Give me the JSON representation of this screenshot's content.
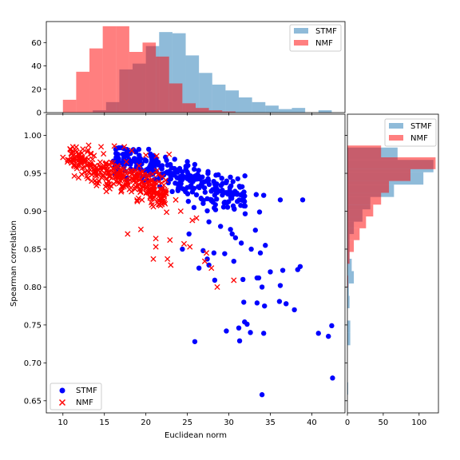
{
  "chart_data": {
    "type": "scatter",
    "main": {
      "xlabel": "Euclidean norm",
      "ylabel": "Spearman correlation",
      "xlim": [
        8,
        44
      ],
      "ylim": [
        0.634,
        1.028
      ],
      "xticks": [
        10,
        15,
        20,
        25,
        30,
        35,
        40
      ],
      "yticks": [
        0.65,
        0.7,
        0.75,
        0.8,
        0.85,
        0.9,
        0.95,
        1.0
      ],
      "xtick_labels": [
        "10",
        "15",
        "20",
        "25",
        "30",
        "35",
        "40"
      ],
      "ytick_labels": [
        "0.65",
        "0.70",
        "0.75",
        "0.80",
        "0.85",
        "0.90",
        "0.95",
        "1.00"
      ],
      "legend": "lower-left",
      "series": [
        {
          "name": "STMF",
          "marker": "circle",
          "color": "#0000ff",
          "core": {
            "n": 300,
            "x_range": [
              16,
              32
            ],
            "y_center_fn": "0.975 - 0.0038*(x-16)",
            "y_spread": 0.03
          },
          "points": [
            [
              36.2,
              0.915
            ],
            [
              38.9,
              0.915
            ],
            [
              34.2,
              0.921
            ],
            [
              33.3,
              0.922
            ],
            [
              31.9,
              0.92
            ],
            [
              33.7,
              0.899
            ],
            [
              33.2,
              0.875
            ],
            [
              34.4,
              0.855
            ],
            [
              33.8,
              0.845
            ],
            [
              32.7,
              0.85
            ],
            [
              30.4,
              0.87
            ],
            [
              30.8,
              0.865
            ],
            [
              31.5,
              0.858
            ],
            [
              30.6,
              0.834
            ],
            [
              29.5,
              0.844
            ],
            [
              28.2,
              0.845
            ],
            [
              26.9,
              0.848
            ],
            [
              27.4,
              0.837
            ],
            [
              27.6,
              0.829
            ],
            [
              26.4,
              0.825
            ],
            [
              28.3,
              0.809
            ],
            [
              31.7,
              0.81
            ],
            [
              33.4,
              0.812
            ],
            [
              33.6,
              0.812
            ],
            [
              34.0,
              0.8
            ],
            [
              36.2,
              0.802
            ],
            [
              35.0,
              0.82
            ],
            [
              36.5,
              0.822
            ],
            [
              38.6,
              0.827
            ],
            [
              38.3,
              0.823
            ],
            [
              31.8,
              0.78
            ],
            [
              33.4,
              0.779
            ],
            [
              34.3,
              0.775
            ],
            [
              36.1,
              0.781
            ],
            [
              36.9,
              0.778
            ],
            [
              37.9,
              0.77
            ],
            [
              31.9,
              0.754
            ],
            [
              32.2,
              0.751
            ],
            [
              29.7,
              0.742
            ],
            [
              31.2,
              0.746
            ],
            [
              32.6,
              0.74
            ],
            [
              34.2,
              0.739
            ],
            [
              40.8,
              0.739
            ],
            [
              42.0,
              0.735
            ],
            [
              42.4,
              0.749
            ],
            [
              25.9,
              0.728
            ],
            [
              31.3,
              0.729
            ],
            [
              42.5,
              0.68
            ],
            [
              34.0,
              0.658
            ],
            [
              24.4,
              0.85
            ],
            [
              25.2,
              0.87
            ],
            [
              29.0,
              0.88
            ],
            [
              30.2,
              0.876
            ],
            [
              28.4,
              0.902
            ],
            [
              27.6,
              0.886
            ]
          ]
        },
        {
          "name": "NMF",
          "marker": "x",
          "color": "#ff0000",
          "core": {
            "n": 340,
            "x_range": [
              10.5,
              22.5
            ],
            "y_center_fn": "0.972 - 0.0042*(x-10.5)",
            "y_spread": 0.026
          },
          "points": [
            [
              10.0,
              0.971
            ],
            [
              11.2,
              0.985
            ],
            [
              12.4,
              0.982
            ],
            [
              13.1,
              0.987
            ],
            [
              14.6,
              0.985
            ],
            [
              16.2,
              0.986
            ],
            [
              17.4,
              0.985
            ],
            [
              18.3,
              0.98
            ],
            [
              20.0,
              0.974
            ],
            [
              21.3,
              0.973
            ],
            [
              22.8,
              0.975
            ],
            [
              17.8,
              0.87
            ],
            [
              19.4,
              0.876
            ],
            [
              21.2,
              0.864
            ],
            [
              22.9,
              0.862
            ],
            [
              21.2,
              0.853
            ],
            [
              20.9,
              0.837
            ],
            [
              22.6,
              0.837
            ],
            [
              24.6,
              0.857
            ],
            [
              25.3,
              0.853
            ],
            [
              25.6,
              0.888
            ],
            [
              26.1,
              0.891
            ],
            [
              27.3,
              0.845
            ],
            [
              27.1,
              0.834
            ],
            [
              27.9,
              0.825
            ],
            [
              28.6,
              0.8
            ],
            [
              30.6,
              0.809
            ],
            [
              23.0,
              0.829
            ],
            [
              24.2,
              0.9
            ],
            [
              23.6,
              0.915
            ]
          ]
        }
      ]
    },
    "top_hist": {
      "legend": "top-right",
      "ylim": [
        0,
        78
      ],
      "yticks": [
        0,
        20,
        40,
        60
      ],
      "ytick_labels": [
        "0",
        "20",
        "40",
        "60"
      ],
      "series": [
        {
          "name": "STMF",
          "color": "#1f77b4",
          "alpha": 0.5,
          "edges": [
            13.6,
            15.2,
            16.8,
            18.4,
            20.0,
            21.6,
            23.2,
            24.8,
            26.4,
            28.0,
            29.6,
            31.2,
            32.8,
            34.4,
            36.0,
            37.6,
            39.2,
            40.8,
            42.4
          ],
          "counts": [
            2,
            9,
            37,
            42,
            57,
            69,
            68,
            49,
            34,
            24,
            19,
            13,
            9,
            6,
            3,
            4,
            0,
            2
          ]
        },
        {
          "name": "NMF",
          "color": "#ff0000",
          "alpha": 0.5,
          "edges": [
            10.0,
            11.6,
            13.2,
            14.8,
            16.4,
            18.0,
            19.6,
            21.2,
            22.8,
            24.4,
            26.0,
            27.6,
            29.2,
            30.8
          ],
          "counts": [
            11,
            35,
            55,
            74,
            74,
            52,
            60,
            48,
            25,
            8,
            4,
            2,
            1
          ]
        }
      ]
    },
    "right_hist": {
      "legend": "top-right",
      "xlim": [
        0,
        127
      ],
      "xticks": [
        0,
        50,
        100
      ],
      "xtick_labels": [
        "0",
        "50",
        "100"
      ],
      "series": [
        {
          "name": "STMF",
          "color": "#1f77b4",
          "alpha": 0.5,
          "edges": [
            0.658,
            0.6743,
            0.6906,
            0.7069,
            0.7232,
            0.7395,
            0.7558,
            0.7721,
            0.7884,
            0.8047,
            0.821,
            0.8373,
            0.8536,
            0.8699,
            0.8862,
            0.9025,
            0.9188,
            0.9351,
            0.9514,
            0.9677,
            0.984
          ],
          "counts": [
            1,
            0,
            0,
            0,
            4,
            4,
            0,
            3,
            2,
            9,
            6,
            3,
            3,
            9,
            21,
            32,
            65,
            106,
            120,
            70
          ]
        },
        {
          "name": "NMF",
          "color": "#ff0000",
          "alpha": 0.5,
          "edges": [
            0.7995,
            0.8151,
            0.8307,
            0.8463,
            0.8619,
            0.8775,
            0.8931,
            0.9087,
            0.9243,
            0.9399,
            0.9555,
            0.9711,
            0.9867
          ],
          "counts": [
            1,
            0,
            3,
            9,
            17,
            26,
            36,
            47,
            58,
            88,
            123,
            47
          ]
        }
      ]
    }
  }
}
